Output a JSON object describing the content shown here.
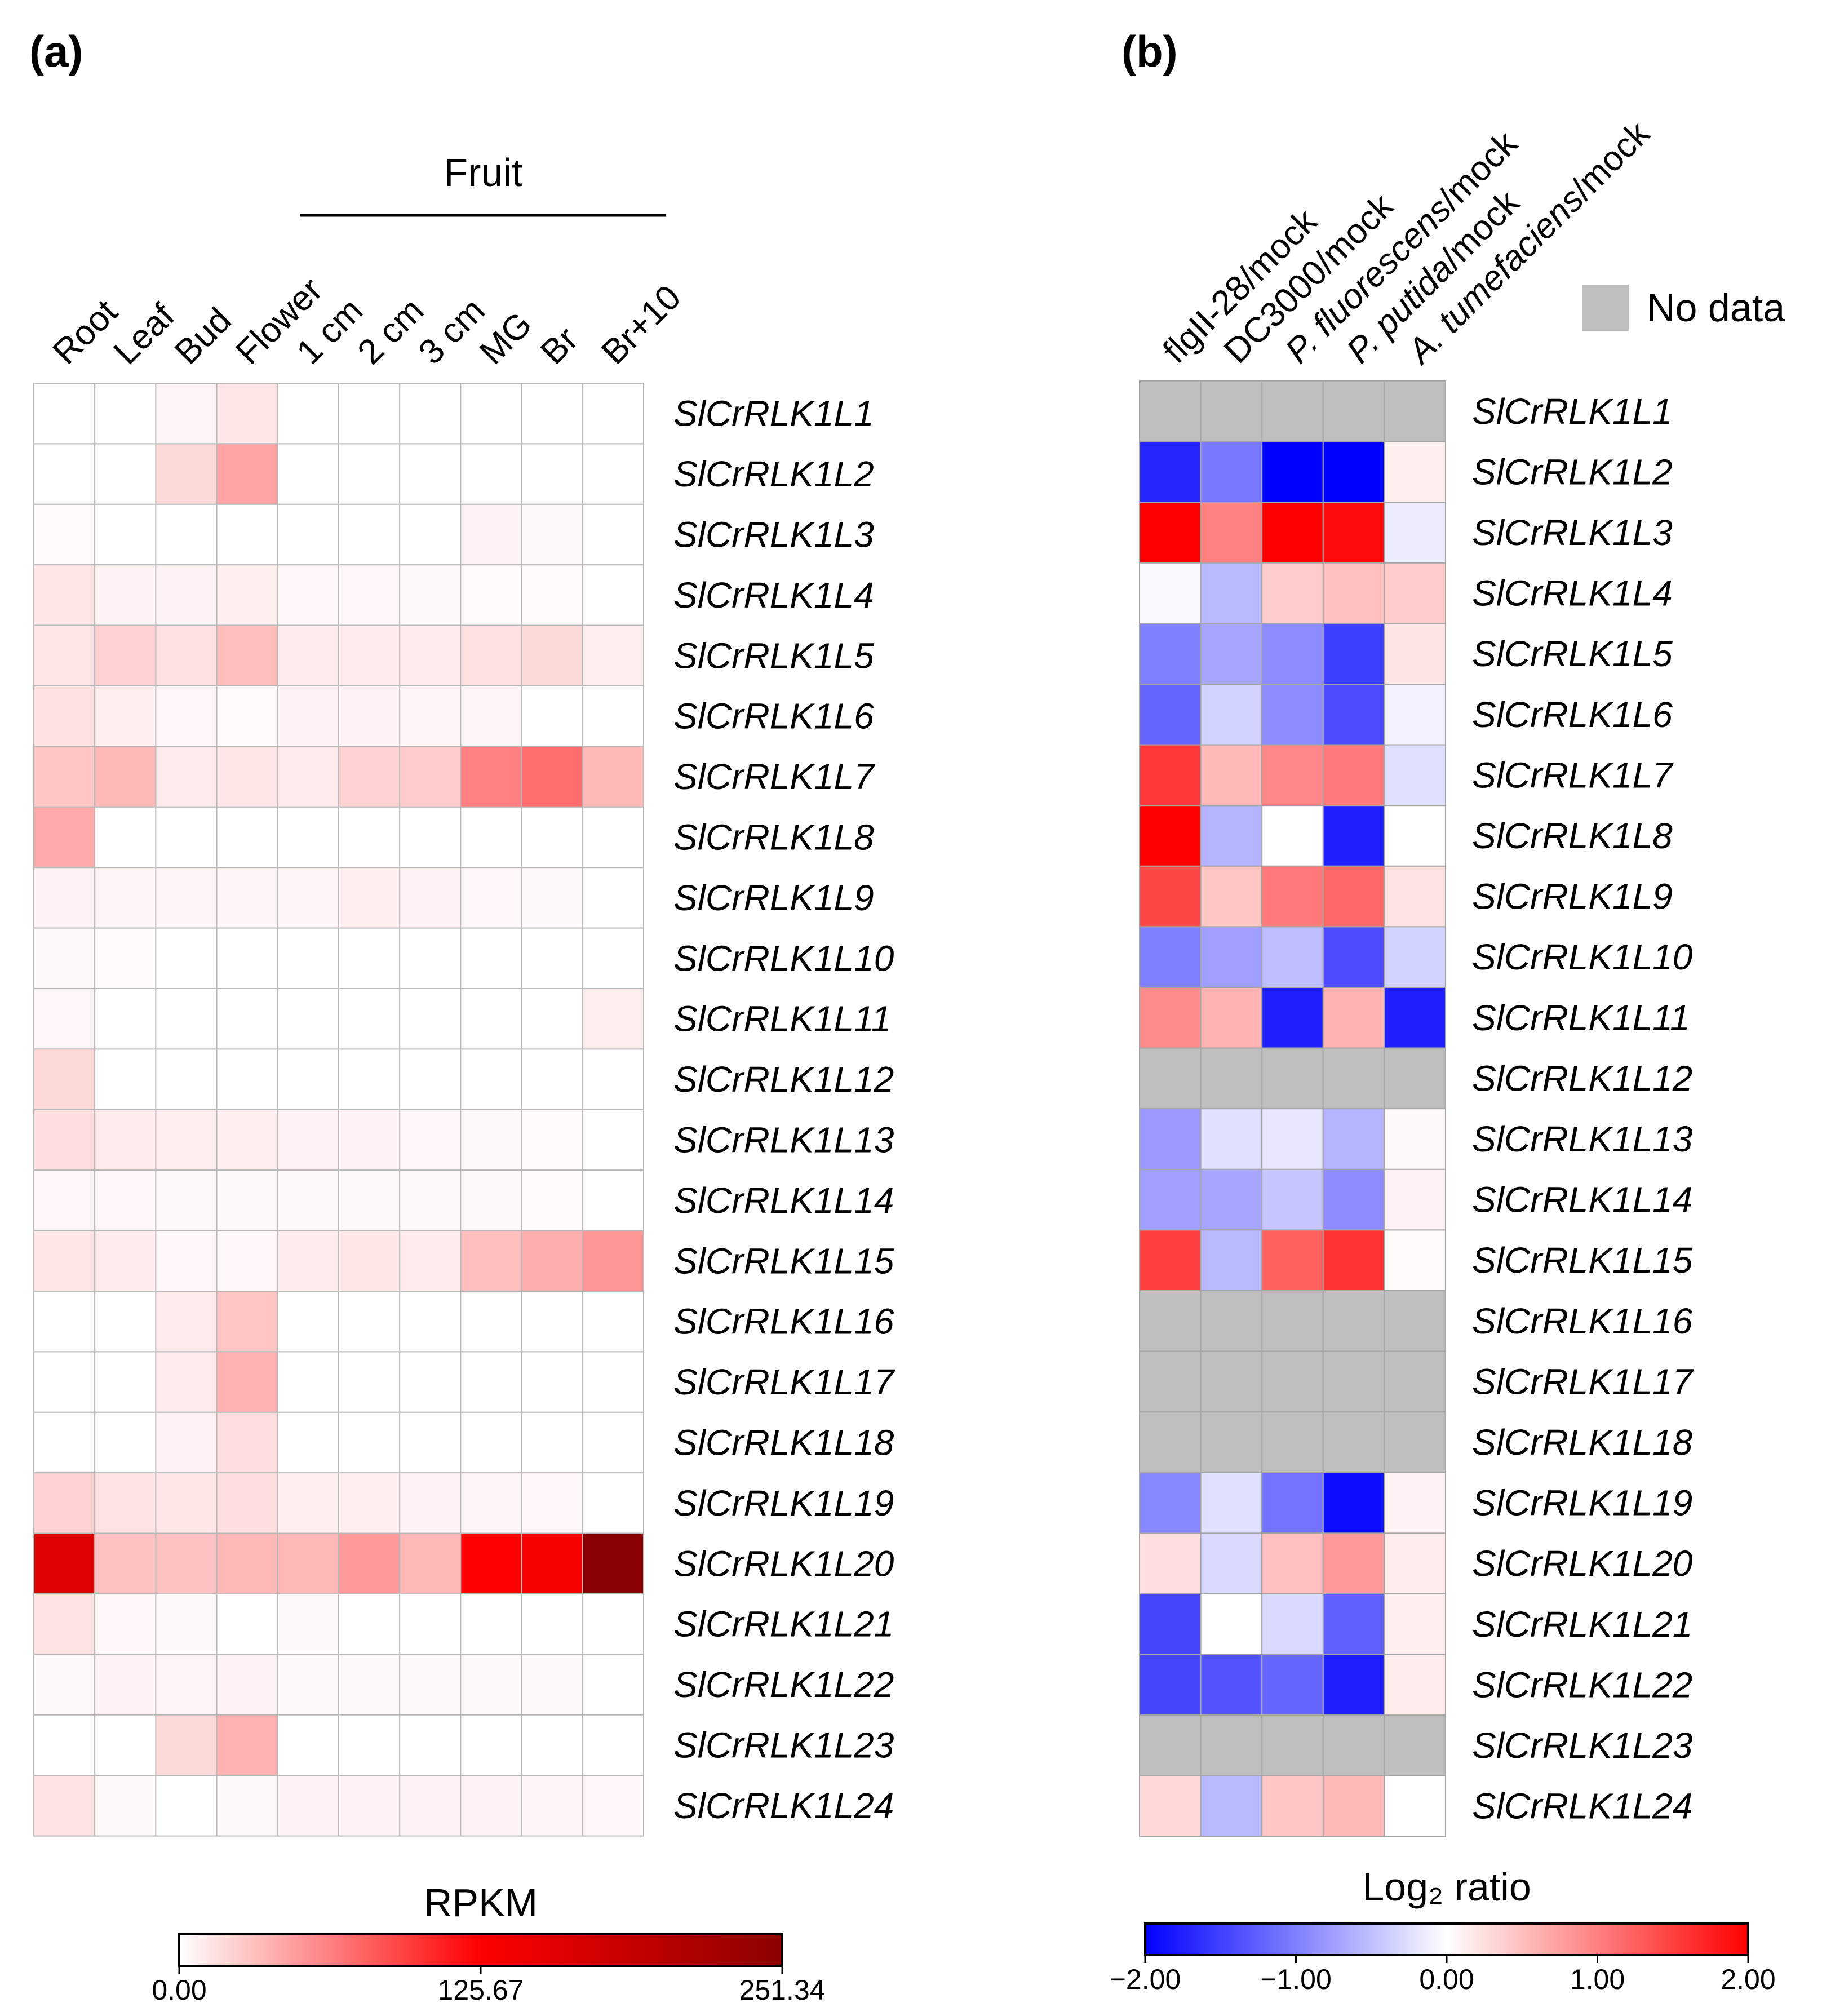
{
  "panels": {
    "a_label": "(a)",
    "b_label": "(b)"
  },
  "genes": [
    "SlCrRLK1L1",
    "SlCrRLK1L2",
    "SlCrRLK1L3",
    "SlCrRLK1L4",
    "SlCrRLK1L5",
    "SlCrRLK1L6",
    "SlCrRLK1L7",
    "SlCrRLK1L8",
    "SlCrRLK1L9",
    "SlCrRLK1L10",
    "SlCrRLK1L11",
    "SlCrRLK1L12",
    "SlCrRLK1L13",
    "SlCrRLK1L14",
    "SlCrRLK1L15",
    "SlCrRLK1L16",
    "SlCrRLK1L17",
    "SlCrRLK1L18",
    "SlCrRLK1L19",
    "SlCrRLK1L20",
    "SlCrRLK1L21",
    "SlCrRLK1L22",
    "SlCrRLK1L23",
    "SlCrRLK1L24"
  ],
  "chart_data": [
    {
      "type": "heatmap",
      "panel": "(a)",
      "group_label": "Fruit",
      "group_columns": [
        "1 cm",
        "2 cm",
        "3 cm",
        "MG",
        "Br",
        "Br+10"
      ],
      "columns": [
        "Root",
        "Leaf",
        "Bud",
        "Flower",
        "1 cm",
        "2 cm",
        "3 cm",
        "MG",
        "Br",
        "Br+10"
      ],
      "legend_title": "RPKM",
      "scale_min": 0.0,
      "scale_max": 251.34,
      "ticks": [
        "0.00",
        "125.67",
        "251.34"
      ],
      "colors": [
        "#ffffff",
        "#ff0000",
        "#8b0000"
      ],
      "values": [
        [
          0,
          0,
          5,
          12,
          0,
          0,
          0,
          0,
          0,
          0
        ],
        [
          0,
          0,
          18,
          45,
          0,
          0,
          0,
          0,
          0,
          0
        ],
        [
          2,
          0,
          0,
          0,
          0,
          0,
          0,
          6,
          3,
          0
        ],
        [
          12,
          6,
          6,
          8,
          4,
          4,
          3,
          2,
          2,
          0
        ],
        [
          12,
          22,
          15,
          32,
          10,
          10,
          10,
          15,
          18,
          8
        ],
        [
          15,
          8,
          4,
          2,
          6,
          6,
          5,
          5,
          0,
          0
        ],
        [
          28,
          35,
          10,
          12,
          10,
          22,
          25,
          62,
          72,
          35
        ],
        [
          42,
          0,
          0,
          0,
          0,
          0,
          0,
          0,
          0,
          0
        ],
        [
          6,
          5,
          5,
          5,
          5,
          8,
          6,
          4,
          3,
          0
        ],
        [
          3,
          2,
          0,
          0,
          0,
          0,
          0,
          0,
          0,
          0
        ],
        [
          4,
          0,
          0,
          0,
          0,
          0,
          0,
          0,
          0,
          8
        ],
        [
          18,
          0,
          0,
          0,
          0,
          0,
          0,
          0,
          0,
          0
        ],
        [
          16,
          10,
          8,
          8,
          7,
          6,
          4,
          3,
          2,
          0
        ],
        [
          4,
          4,
          3,
          3,
          3,
          3,
          3,
          3,
          2,
          0
        ],
        [
          12,
          10,
          4,
          4,
          10,
          12,
          10,
          32,
          40,
          52
        ],
        [
          0,
          0,
          10,
          28,
          0,
          0,
          0,
          0,
          0,
          0
        ],
        [
          0,
          0,
          10,
          38,
          0,
          0,
          0,
          0,
          0,
          0
        ],
        [
          0,
          0,
          6,
          16,
          0,
          0,
          0,
          0,
          0,
          0
        ],
        [
          22,
          14,
          12,
          16,
          8,
          8,
          6,
          5,
          4,
          0
        ],
        [
          160,
          30,
          30,
          35,
          35,
          50,
          35,
          125,
          132,
          251
        ],
        [
          14,
          4,
          3,
          0,
          3,
          0,
          0,
          0,
          0,
          0
        ],
        [
          3,
          6,
          5,
          6,
          3,
          3,
          3,
          3,
          3,
          0
        ],
        [
          0,
          0,
          18,
          38,
          0,
          0,
          0,
          0,
          0,
          0
        ],
        [
          14,
          3,
          0,
          3,
          6,
          6,
          6,
          6,
          5,
          4
        ]
      ]
    },
    {
      "type": "heatmap",
      "panel": "(b)",
      "columns": [
        "flgII-28/mock",
        "DC3000/mock",
        "P. fluorescens/mock",
        "P. putida/mock",
        "A. tumefaciens/mock"
      ],
      "legend_title": "Log₂ ratio",
      "scale_min": -2.0,
      "scale_max": 2.0,
      "ticks": [
        "−2.00",
        "−1.00",
        "0.00",
        "1.00",
        "2.00"
      ],
      "colors": [
        "#0000ff",
        "#ffffff",
        "#ff0000"
      ],
      "missing_color": "#bfbfbf",
      "missing_label": "No data",
      "values": [
        [
          null,
          null,
          null,
          null,
          null
        ],
        [
          -1.7,
          -1.05,
          -2.0,
          -2.0,
          0.12
        ],
        [
          2.0,
          1.0,
          2.0,
          1.9,
          -0.15
        ],
        [
          -0.05,
          -0.55,
          0.4,
          0.5,
          0.4
        ],
        [
          -1.0,
          -0.7,
          -0.9,
          -1.5,
          0.2
        ],
        [
          -1.2,
          -0.35,
          -0.9,
          -1.4,
          -0.1
        ],
        [
          1.55,
          0.55,
          0.95,
          1.05,
          -0.25
        ],
        [
          2.0,
          -0.6,
          0.0,
          -1.75,
          0.0
        ],
        [
          1.45,
          0.45,
          1.05,
          1.2,
          0.22
        ],
        [
          -1.0,
          -0.75,
          -0.5,
          -1.4,
          -0.35
        ],
        [
          0.9,
          0.6,
          -1.75,
          0.6,
          -1.75
        ],
        [
          null,
          null,
          null,
          null,
          null
        ],
        [
          -0.8,
          -0.25,
          -0.2,
          -0.6,
          0.05
        ],
        [
          -0.75,
          -0.7,
          -0.45,
          -0.9,
          0.1
        ],
        [
          1.5,
          -0.55,
          1.25,
          1.6,
          0.03
        ],
        [
          null,
          null,
          null,
          null,
          null
        ],
        [
          null,
          null,
          null,
          null,
          null
        ],
        [
          null,
          null,
          null,
          null,
          null
        ],
        [
          -0.95,
          -0.25,
          -1.1,
          -1.9,
          0.1
        ],
        [
          0.25,
          -0.3,
          0.5,
          0.8,
          0.15
        ],
        [
          -1.45,
          0.0,
          -0.3,
          -1.25,
          0.12
        ],
        [
          -1.45,
          -1.35,
          -1.2,
          -1.75,
          0.15
        ],
        [
          null,
          null,
          null,
          null,
          null
        ],
        [
          0.3,
          -0.55,
          0.45,
          0.55,
          0.0
        ]
      ]
    }
  ]
}
